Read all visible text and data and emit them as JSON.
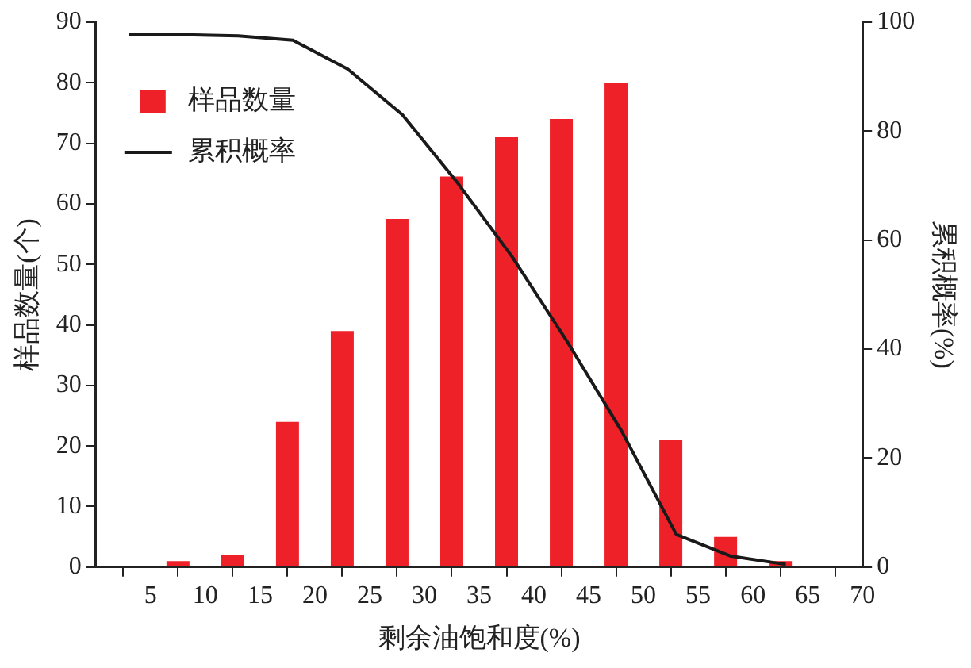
{
  "chart_data": {
    "type": "bar",
    "xlabel": "剩余油饱和度(%)",
    "ylabel": "样品数量(个)",
    "y2label": "累积概率(%)",
    "xlim": [
      0,
      70
    ],
    "xticks": [
      5,
      10,
      15,
      20,
      25,
      30,
      35,
      40,
      45,
      50,
      55,
      60,
      65,
      70
    ],
    "ylim": [
      0,
      90
    ],
    "yticks": [
      0,
      10,
      20,
      30,
      40,
      50,
      60,
      70,
      80,
      90
    ],
    "y2lim": [
      0,
      100
    ],
    "y2ticks": [
      0,
      20,
      40,
      60,
      80,
      100
    ],
    "grid": false,
    "legend": "top left",
    "series": [
      {
        "name": "样品数量",
        "color": "#ee2129",
        "x": [
          7.5,
          12.5,
          17.5,
          22.5,
          27.5,
          32.5,
          37.5,
          42.5,
          47.5,
          52.5,
          57.5,
          62.5
        ],
        "values": [
          1,
          2,
          24,
          39,
          57.5,
          64.5,
          71,
          74,
          80,
          21,
          5,
          1
        ]
      },
      {
        "name": "累积概率",
        "type": "line",
        "axis": "y2",
        "color": "#1a1a1a",
        "marker": "none",
        "line_style": "solid",
        "x": [
          3,
          8,
          13,
          18,
          23,
          28,
          33,
          38,
          43,
          48,
          53,
          58,
          63
        ],
        "values": [
          97.7,
          97.7,
          97.5,
          96.7,
          91.4,
          83,
          70.6,
          57,
          41.5,
          25,
          6,
          2,
          0.5
        ]
      }
    ]
  }
}
